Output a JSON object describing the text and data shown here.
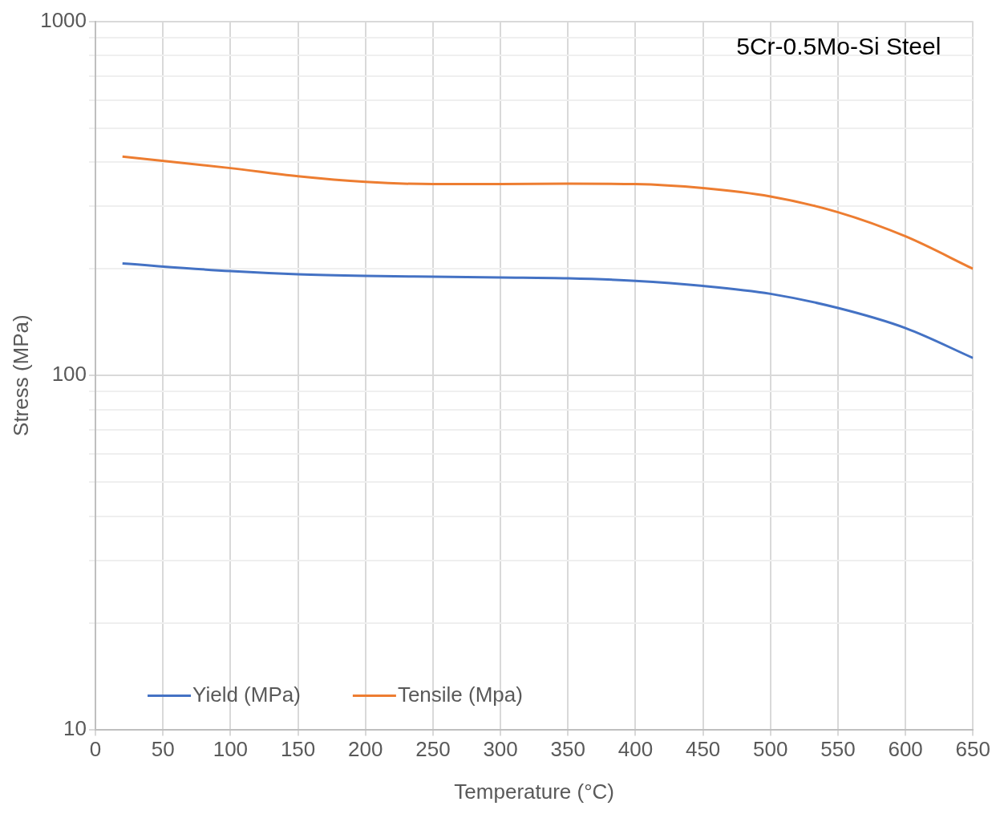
{
  "chart_data": {
    "type": "line",
    "title": "5Cr-0.5Mo-Si Steel",
    "xlabel": "Temperature (°C)",
    "ylabel": "Stress (MPa)",
    "x": [
      20,
      100,
      150,
      200,
      250,
      300,
      350,
      400,
      450,
      500,
      550,
      600,
      650
    ],
    "series": [
      {
        "name": "Yield (MPa)",
        "color": "#4472c4",
        "values": [
          207,
          197,
          193,
          191,
          190,
          189,
          188,
          185,
          179,
          170,
          155,
          136,
          112
        ]
      },
      {
        "name": "Tensile (Mpa)",
        "color": "#ed7d31",
        "values": [
          415,
          385,
          365,
          352,
          347,
          347,
          348,
          347,
          338,
          320,
          289,
          247,
          200
        ]
      }
    ],
    "log": "y",
    "xlim": [
      0,
      650
    ],
    "xticks": [
      0,
      50,
      100,
      150,
      200,
      250,
      300,
      350,
      400,
      450,
      500,
      550,
      600,
      650
    ],
    "ylim": [
      10,
      1000
    ],
    "yticks": [
      10,
      {
        "value": 20,
        "label": null
      },
      {
        "value": 30,
        "label": null
      },
      {
        "value": 40,
        "label": null
      },
      {
        "value": 50,
        "label": null
      },
      {
        "value": 60,
        "label": null
      },
      {
        "value": 70,
        "label": null
      },
      {
        "value": 80,
        "label": null
      },
      {
        "value": 90,
        "label": null
      },
      100,
      {
        "value": 200,
        "label": null
      },
      {
        "value": 300,
        "label": null
      },
      {
        "value": 400,
        "label": null
      },
      {
        "value": 500,
        "label": null
      },
      {
        "value": 600,
        "label": null
      },
      {
        "value": 700,
        "label": null
      },
      {
        "value": 800,
        "label": null
      },
      {
        "value": 900,
        "label": null
      },
      1000
    ],
    "grid": true,
    "legend": "bottom left",
    "marker": "none",
    "line_style": "solid"
  }
}
